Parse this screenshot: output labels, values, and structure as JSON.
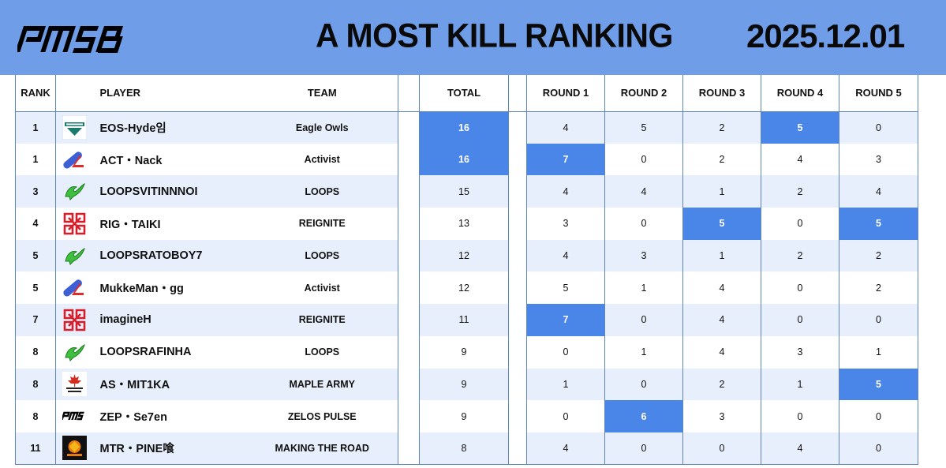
{
  "header": {
    "logo_text": "PMSB",
    "title": "A  MOST KILL RANKING",
    "date": "2025.12.01"
  },
  "columns": {
    "rank": "RANK",
    "player": "PLAYER",
    "team": "TEAM",
    "total": "TOTAL",
    "round1": "ROUND 1",
    "round2": "ROUND 2",
    "round3": "ROUND 3",
    "round4": "ROUND 4",
    "round5": "ROUND 5"
  },
  "colors": {
    "header_bg": "#709de8",
    "highlight": "#4a86e8",
    "row_alt": "#e8effc"
  },
  "rows": [
    {
      "rank": "1",
      "player": "EOS-Hyde임",
      "team": "Eagle Owls",
      "team_icon": "eagle-owls-logo-icon",
      "total": "16",
      "r1": "4",
      "r2": "5",
      "r3": "2",
      "r4": "5",
      "r5": "0"
    },
    {
      "rank": "1",
      "player": "ACT・Nack",
      "team": "Activist",
      "team_icon": "activist-logo-icon",
      "total": "16",
      "r1": "7",
      "r2": "0",
      "r3": "2",
      "r4": "4",
      "r5": "3"
    },
    {
      "rank": "3",
      "player": "LOOPSVITINNNOI",
      "team": "LOOPS",
      "team_icon": "loops-logo-icon",
      "total": "15",
      "r1": "4",
      "r2": "4",
      "r3": "1",
      "r4": "2",
      "r5": "4"
    },
    {
      "rank": "4",
      "player": "RIG・TAIKI",
      "team": "REIGNITE",
      "team_icon": "reignite-logo-icon",
      "total": "13",
      "r1": "3",
      "r2": "0",
      "r3": "5",
      "r4": "0",
      "r5": "5"
    },
    {
      "rank": "5",
      "player": "LOOPSRATOBOY7",
      "team": "LOOPS",
      "team_icon": "loops-logo-icon",
      "total": "12",
      "r1": "4",
      "r2": "3",
      "r3": "1",
      "r4": "2",
      "r5": "2"
    },
    {
      "rank": "5",
      "player": "MukkeMan・gg",
      "team": "Activist",
      "team_icon": "activist-logo-icon",
      "total": "12",
      "r1": "5",
      "r2": "1",
      "r3": "4",
      "r4": "0",
      "r5": "2"
    },
    {
      "rank": "7",
      "player": "imagineH",
      "team": "REIGNITE",
      "team_icon": "reignite-logo-icon",
      "total": "11",
      "r1": "7",
      "r2": "0",
      "r3": "4",
      "r4": "0",
      "r5": "0"
    },
    {
      "rank": "8",
      "player": "LOOPSRAFINHA",
      "team": "LOOPS",
      "team_icon": "loops-logo-icon",
      "total": "9",
      "r1": "0",
      "r2": "1",
      "r3": "4",
      "r4": "3",
      "r5": "1"
    },
    {
      "rank": "8",
      "player": "AS・MIT1KA",
      "team": "MAPLE ARMY",
      "team_icon": "maple-army-logo-icon",
      "total": "9",
      "r1": "1",
      "r2": "0",
      "r3": "2",
      "r4": "1",
      "r5": "5"
    },
    {
      "rank": "8",
      "player": "ZEP・Se7en",
      "team": "ZELOS PULSE",
      "team_icon": "zelos-pulse-logo-icon",
      "total": "9",
      "r1": "0",
      "r2": "6",
      "r3": "3",
      "r4": "0",
      "r5": "0"
    },
    {
      "rank": "11",
      "player": "MTR・PINE喰",
      "team": "MAKING THE ROAD",
      "team_icon": "making-the-road-logo-icon",
      "total": "8",
      "r1": "4",
      "r2": "0",
      "r3": "0",
      "r4": "4",
      "r5": "0"
    }
  ]
}
